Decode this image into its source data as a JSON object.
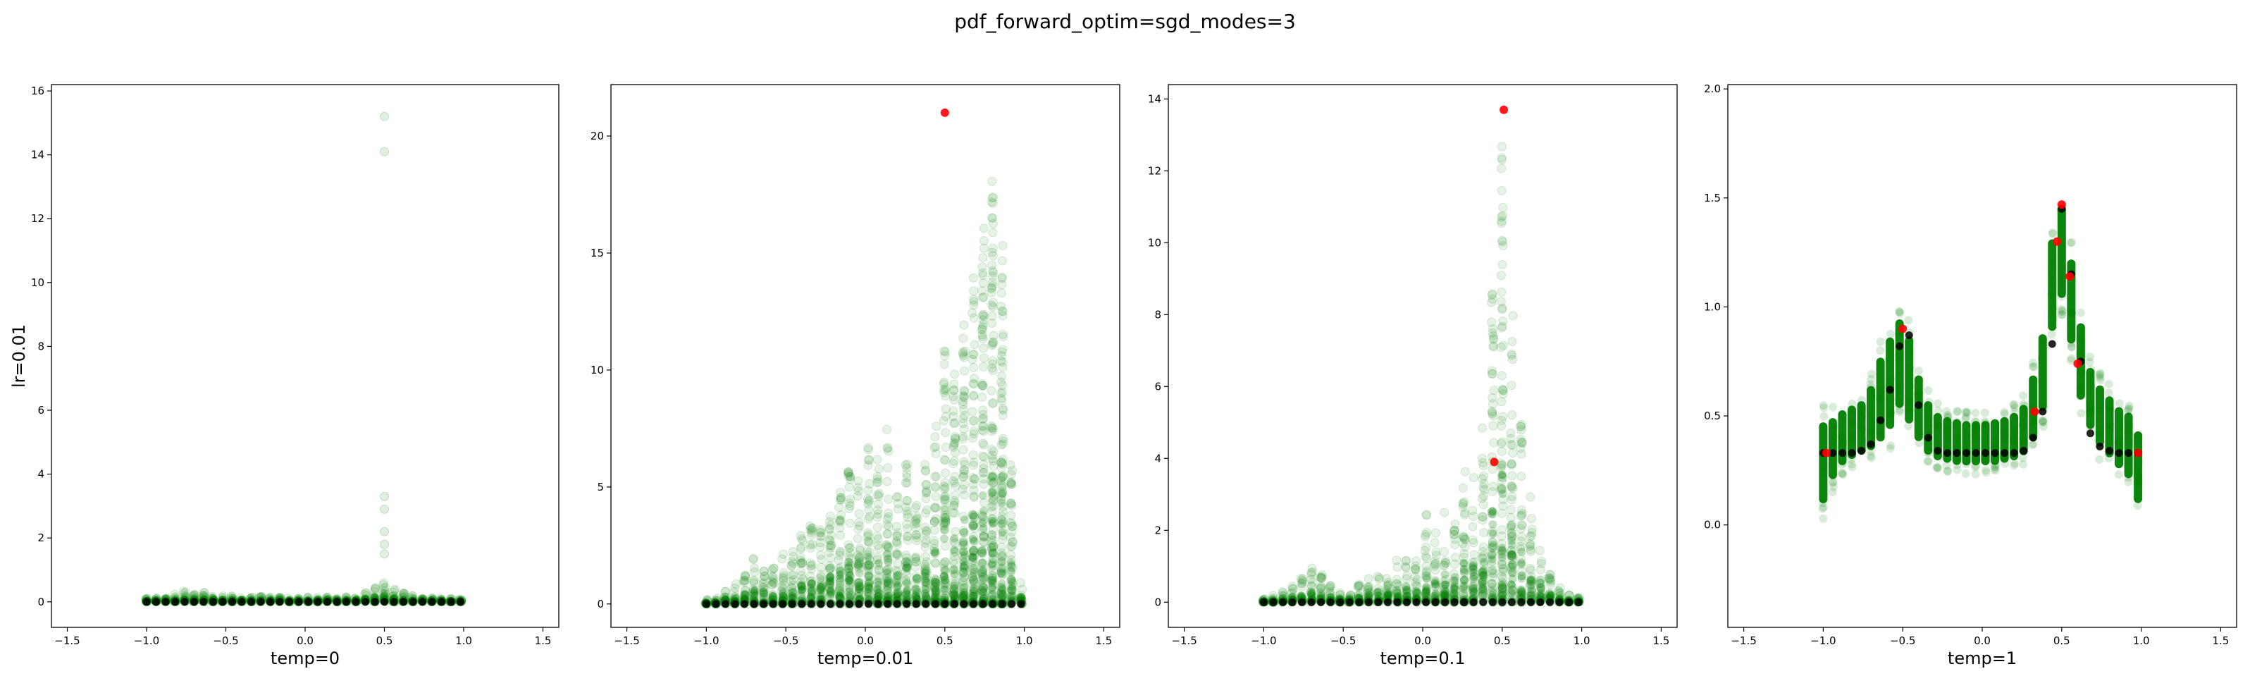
{
  "figure_title": "pdf_forward_optim=sgd_modes=3",
  "colors": {
    "scatter": "#008000",
    "mean": "#000000",
    "highlight": "#ff0000",
    "frame": "#000000"
  },
  "chart_data": [
    {
      "type": "scatter",
      "xlabel": "temp=0",
      "ylabel": "lr=0.01",
      "xlim": [
        -1.6,
        1.6
      ],
      "ylim": [
        -0.8,
        16.2
      ],
      "xticks": [
        -1.5,
        -1.0,
        -0.5,
        0.0,
        0.5,
        1.0,
        1.5
      ],
      "xtick_labels": [
        "−1.5",
        "−1.0",
        "−0.5",
        "0.0",
        "0.5",
        "1.0",
        "1.5"
      ],
      "yticks": [
        0,
        2,
        4,
        6,
        8,
        10,
        12,
        14,
        16
      ],
      "ytick_labels": [
        "0",
        "2",
        "4",
        "6",
        "8",
        "10",
        "12",
        "14",
        "16"
      ],
      "series": [
        {
          "name": "",
          "style": "cloud",
          "x": [
            -1.0,
            -0.94,
            -0.88,
            -0.82,
            -0.76,
            -0.7,
            -0.64,
            -0.58,
            -0.52,
            -0.46,
            -0.4,
            -0.34,
            -0.28,
            -0.22,
            -0.16,
            -0.1,
            -0.04,
            0.02,
            0.08,
            0.14,
            0.2,
            0.26,
            0.32,
            0.38,
            0.44,
            0.5,
            0.56,
            0.62,
            0.68,
            0.74,
            0.8,
            0.86,
            0.92,
            0.98
          ],
          "ymax": [
            0.12,
            0.15,
            0.2,
            0.28,
            0.35,
            0.35,
            0.3,
            0.25,
            0.22,
            0.2,
            0.18,
            0.18,
            0.17,
            0.16,
            0.15,
            0.15,
            0.15,
            0.15,
            0.16,
            0.16,
            0.17,
            0.18,
            0.22,
            0.3,
            0.5,
            0.7,
            0.45,
            0.28,
            0.2,
            0.15,
            0.12,
            0.12,
            0.11,
            0.1
          ]
        },
        {
          "name": "",
          "style": "outlier",
          "x": [
            0.5,
            0.5,
            0.5,
            0.5,
            0.5,
            0.5,
            0.5
          ],
          "y": [
            15.2,
            14.1,
            3.3,
            2.9,
            2.2,
            1.8,
            1.5
          ]
        },
        {
          "name": "",
          "style": "mean",
          "x": [
            -1.0,
            -0.94,
            -0.88,
            -0.82,
            -0.76,
            -0.7,
            -0.64,
            -0.58,
            -0.52,
            -0.46,
            -0.4,
            -0.34,
            -0.28,
            -0.22,
            -0.16,
            -0.1,
            -0.04,
            0.02,
            0.08,
            0.14,
            0.2,
            0.26,
            0.32,
            0.38,
            0.44,
            0.5,
            0.56,
            0.62,
            0.68,
            0.74,
            0.8,
            0.86,
            0.92,
            0.98
          ],
          "y": [
            0.0,
            0.0,
            0.0,
            0.0,
            0.0,
            0.0,
            0.0,
            0.0,
            0.0,
            0.0,
            0.0,
            0.0,
            0.0,
            0.0,
            0.0,
            0.0,
            0.0,
            0.0,
            0.0,
            0.0,
            0.0,
            0.0,
            0.0,
            0.0,
            0.0,
            0.0,
            0.0,
            0.0,
            0.0,
            0.0,
            0.0,
            0.0,
            0.0,
            0.0
          ]
        }
      ]
    },
    {
      "type": "scatter",
      "xlabel": "temp=0.01",
      "ylabel": "",
      "xlim": [
        -1.6,
        1.6
      ],
      "ylim": [
        -1.0,
        22.2
      ],
      "xticks": [
        -1.5,
        -1.0,
        -0.5,
        0.0,
        0.5,
        1.0,
        1.5
      ],
      "xtick_labels": [
        "−1.5",
        "−1.0",
        "−0.5",
        "0.0",
        "0.5",
        "1.0",
        "1.5"
      ],
      "yticks": [
        0,
        5,
        10,
        15,
        20
      ],
      "ytick_labels": [
        "0",
        "5",
        "10",
        "15",
        "20"
      ],
      "series": [
        {
          "name": "",
          "style": "cloud",
          "x": [
            -1.0,
            -0.94,
            -0.88,
            -0.82,
            -0.76,
            -0.7,
            -0.64,
            -0.58,
            -0.52,
            -0.46,
            -0.4,
            -0.34,
            -0.28,
            -0.22,
            -0.16,
            -0.1,
            -0.04,
            0.02,
            0.08,
            0.14,
            0.2,
            0.26,
            0.32,
            0.38,
            0.44,
            0.5,
            0.56,
            0.62,
            0.68,
            0.74,
            0.8,
            0.86,
            0.92,
            0.98
          ],
          "ymax": [
            0.2,
            0.3,
            0.6,
            1.0,
            1.5,
            2.0,
            1.8,
            1.6,
            2.2,
            2.5,
            3.0,
            3.5,
            3.2,
            4.0,
            5.0,
            6.0,
            5.5,
            7.0,
            6.5,
            7.5,
            5.0,
            6.0,
            4.5,
            6.0,
            8.0,
            11.0,
            10.0,
            12.0,
            14.0,
            16.5,
            18.8,
            16.0,
            6.0,
            1.0
          ]
        },
        {
          "name": "",
          "style": "mean",
          "x": [
            -1.0,
            -0.94,
            -0.88,
            -0.82,
            -0.76,
            -0.7,
            -0.64,
            -0.58,
            -0.52,
            -0.46,
            -0.4,
            -0.34,
            -0.28,
            -0.22,
            -0.16,
            -0.1,
            -0.04,
            0.02,
            0.08,
            0.14,
            0.2,
            0.26,
            0.32,
            0.38,
            0.44,
            0.5,
            0.56,
            0.62,
            0.68,
            0.74,
            0.8,
            0.86,
            0.92,
            0.98
          ],
          "y": [
            0.0,
            0.0,
            0.0,
            0.0,
            0.0,
            0.0,
            0.0,
            0.0,
            0.0,
            0.0,
            0.0,
            0.0,
            0.0,
            0.0,
            0.0,
            0.0,
            0.0,
            0.0,
            0.0,
            0.0,
            0.0,
            0.0,
            0.0,
            0.0,
            0.0,
            0.0,
            0.0,
            0.0,
            0.0,
            0.0,
            0.0,
            0.0,
            0.0,
            0.0
          ]
        },
        {
          "name": "",
          "style": "highlight",
          "x": [
            0.5
          ],
          "y": [
            21.0
          ]
        }
      ]
    },
    {
      "type": "scatter",
      "xlabel": "temp=0.1",
      "ylabel": "",
      "xlim": [
        -1.6,
        1.6
      ],
      "ylim": [
        -0.7,
        14.4
      ],
      "xticks": [
        -1.5,
        -1.0,
        -0.5,
        0.0,
        0.5,
        1.0,
        1.5
      ],
      "xtick_labels": [
        "−1.5",
        "−1.0",
        "−0.5",
        "0.0",
        "0.5",
        "1.0",
        "1.5"
      ],
      "yticks": [
        0,
        2,
        4,
        6,
        8,
        10,
        12,
        14
      ],
      "ytick_labels": [
        "0",
        "2",
        "4",
        "6",
        "8",
        "10",
        "12",
        "14"
      ],
      "series": [
        {
          "name": "",
          "style": "cloud",
          "x": [
            -1.0,
            -0.94,
            -0.88,
            -0.82,
            -0.76,
            -0.7,
            -0.64,
            -0.58,
            -0.52,
            -0.46,
            -0.4,
            -0.34,
            -0.28,
            -0.22,
            -0.16,
            -0.1,
            -0.04,
            0.02,
            0.08,
            0.14,
            0.2,
            0.26,
            0.32,
            0.38,
            0.44,
            0.5,
            0.56,
            0.62,
            0.68,
            0.74,
            0.8,
            0.86,
            0.92,
            0.98
          ],
          "ymax": [
            0.15,
            0.2,
            0.3,
            0.5,
            0.8,
            1.0,
            0.8,
            0.5,
            0.3,
            0.3,
            0.5,
            0.8,
            1.0,
            0.8,
            1.2,
            1.5,
            1.2,
            2.5,
            2.0,
            3.0,
            2.5,
            4.0,
            3.5,
            5.0,
            9.0,
            13.0,
            8.0,
            5.0,
            3.0,
            1.5,
            0.8,
            0.4,
            0.2,
            0.15
          ]
        },
        {
          "name": "",
          "style": "mean",
          "x": [
            -1.0,
            -0.94,
            -0.88,
            -0.82,
            -0.76,
            -0.7,
            -0.64,
            -0.58,
            -0.52,
            -0.46,
            -0.4,
            -0.34,
            -0.28,
            -0.22,
            -0.16,
            -0.1,
            -0.04,
            0.02,
            0.08,
            0.14,
            0.2,
            0.26,
            0.32,
            0.38,
            0.44,
            0.5,
            0.56,
            0.62,
            0.68,
            0.74,
            0.8,
            0.86,
            0.92,
            0.98
          ],
          "y": [
            0.0,
            0.0,
            0.0,
            0.0,
            0.0,
            0.0,
            0.0,
            0.0,
            0.0,
            0.0,
            0.0,
            0.0,
            0.0,
            0.0,
            0.0,
            0.0,
            0.0,
            0.0,
            0.0,
            0.0,
            0.0,
            0.0,
            0.0,
            0.0,
            0.0,
            0.0,
            0.0,
            0.0,
            0.0,
            0.0,
            0.0,
            0.0,
            0.0,
            0.0
          ]
        },
        {
          "name": "",
          "style": "highlight",
          "x": [
            0.51,
            0.45
          ],
          "y": [
            13.7,
            3.9
          ]
        }
      ]
    },
    {
      "type": "scatter",
      "xlabel": "temp=1",
      "ylabel": "",
      "xlim": [
        -1.6,
        1.6
      ],
      "ylim": [
        -0.47,
        2.02
      ],
      "xticks": [
        -1.5,
        -1.0,
        -0.5,
        0.0,
        0.5,
        1.0,
        1.5
      ],
      "xtick_labels": [
        "−1.5",
        "−1.0",
        "−0.5",
        "0.0",
        "0.5",
        "1.0",
        "1.5"
      ],
      "yticks": [
        0.0,
        0.5,
        1.0,
        1.5,
        2.0
      ],
      "ytick_labels": [
        "0.0",
        "0.5",
        "1.0",
        "1.5",
        "2.0"
      ],
      "series": [
        {
          "name": "",
          "style": "band",
          "x": [
            -1.0,
            -0.94,
            -0.88,
            -0.82,
            -0.76,
            -0.7,
            -0.64,
            -0.58,
            -0.52,
            -0.46,
            -0.4,
            -0.34,
            -0.28,
            -0.22,
            -0.16,
            -0.1,
            -0.04,
            0.02,
            0.08,
            0.14,
            0.2,
            0.26,
            0.32,
            0.38,
            0.44,
            0.5,
            0.56,
            0.62,
            0.68,
            0.74,
            0.8,
            0.86,
            0.92,
            0.98
          ],
          "ymin": [
            0.02,
            0.15,
            0.22,
            0.25,
            0.27,
            0.28,
            0.3,
            0.35,
            0.45,
            0.38,
            0.32,
            0.27,
            0.25,
            0.24,
            0.23,
            0.23,
            0.23,
            0.23,
            0.23,
            0.24,
            0.25,
            0.27,
            0.32,
            0.45,
            0.8,
            0.95,
            0.75,
            0.5,
            0.38,
            0.3,
            0.25,
            0.2,
            0.15,
            0.03
          ],
          "ymax": [
            0.55,
            0.55,
            0.58,
            0.6,
            0.62,
            0.7,
            0.85,
            0.95,
            1.03,
            0.95,
            0.75,
            0.62,
            0.56,
            0.54,
            0.53,
            0.52,
            0.52,
            0.52,
            0.53,
            0.54,
            0.56,
            0.6,
            0.75,
            0.95,
            1.4,
            1.56,
            1.3,
            1.0,
            0.78,
            0.7,
            0.65,
            0.6,
            0.58,
            0.5
          ]
        },
        {
          "name": "",
          "style": "mean",
          "x": [
            -1.0,
            -0.94,
            -0.88,
            -0.82,
            -0.76,
            -0.7,
            -0.64,
            -0.58,
            -0.52,
            -0.46,
            -0.4,
            -0.34,
            -0.28,
            -0.22,
            -0.16,
            -0.1,
            -0.04,
            0.02,
            0.08,
            0.14,
            0.2,
            0.26,
            0.32,
            0.38,
            0.44,
            0.5,
            0.56,
            0.62,
            0.68,
            0.74,
            0.8,
            0.86,
            0.92,
            0.98
          ],
          "y": [
            0.33,
            0.33,
            0.33,
            0.33,
            0.34,
            0.37,
            0.48,
            0.62,
            0.82,
            0.87,
            0.55,
            0.4,
            0.34,
            0.33,
            0.33,
            0.33,
            0.33,
            0.33,
            0.33,
            0.33,
            0.33,
            0.34,
            0.4,
            0.52,
            0.83,
            1.45,
            1.15,
            0.75,
            0.42,
            0.36,
            0.34,
            0.33,
            0.33,
            0.33
          ]
        },
        {
          "name": "",
          "style": "highlight",
          "x": [
            -0.98,
            -0.5,
            0.33,
            0.47,
            0.5,
            0.55,
            0.6,
            0.98
          ],
          "y": [
            0.33,
            0.9,
            0.52,
            1.3,
            1.47,
            1.14,
            0.74,
            0.33
          ]
        }
      ]
    }
  ]
}
